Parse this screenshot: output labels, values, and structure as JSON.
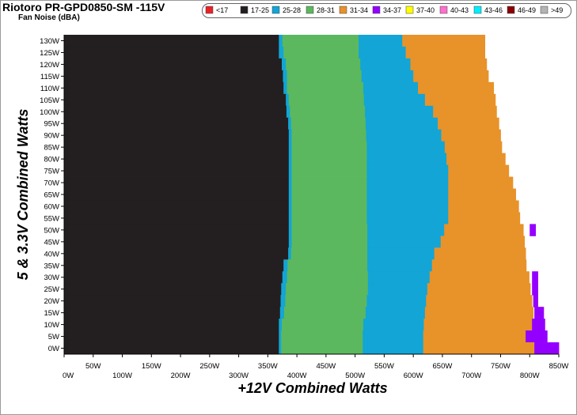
{
  "title": "Riotoro PR-GPD0850-SM -115V",
  "subtitle": "Fan Noise (dBA)",
  "chart_data": {
    "type": "heatmap",
    "xlabel": "+12V Combined Watts",
    "ylabel": "5 & 3.3V Combined Watts",
    "xlim": [
      0,
      850
    ],
    "ylim": [
      0,
      130
    ],
    "x_ticks": [
      "0W",
      "50W",
      "100W",
      "150W",
      "200W",
      "250W",
      "300W",
      "350W",
      "400W",
      "450W",
      "500W",
      "550W",
      "600W",
      "650W",
      "700W",
      "750W",
      "800W",
      "850W"
    ],
    "y_ticks": [
      "0W",
      "5W",
      "10W",
      "15W",
      "20W",
      "25W",
      "30W",
      "35W",
      "40W",
      "45W",
      "50W",
      "55W",
      "60W",
      "65W",
      "70W",
      "75W",
      "80W",
      "85W",
      "90W",
      "95W",
      "100W",
      "105W",
      "110W",
      "115W",
      "120W",
      "125W",
      "130W"
    ],
    "legend": [
      {
        "label": "<17",
        "color": "#e8222a"
      },
      {
        "label": "17-25",
        "color": "#231f20"
      },
      {
        "label": "25-28",
        "color": "#12a5d6"
      },
      {
        "label": "28-31",
        "color": "#5cb85e"
      },
      {
        "label": "31-34",
        "color": "#e8922a"
      },
      {
        "label": "34-37",
        "color": "#9400ff"
      },
      {
        "label": "37-40",
        "color": "#ffff00"
      },
      {
        "label": "40-43",
        "color": "#ff6fcf"
      },
      {
        "label": "43-46",
        "color": "#00eeff"
      },
      {
        "label": "46-49",
        "color": "#8b0000"
      },
      {
        "label": ">49",
        "color": "#b4b4b4"
      }
    ],
    "legend_position": "top",
    "rows": [
      {
        "y": 130,
        "boundaries": [
          369,
          375,
          506,
          581,
          723
        ]
      },
      {
        "y": 125,
        "boundaries": [
          369,
          377,
          506,
          587,
          723
        ]
      },
      {
        "y": 120,
        "boundaries": [
          374,
          381,
          509,
          595,
          726
        ]
      },
      {
        "y": 115,
        "boundaries": [
          376,
          383,
          511,
          600,
          729
        ]
      },
      {
        "y": 110,
        "boundaries": [
          377,
          383,
          514,
          608,
          738
        ]
      },
      {
        "y": 105,
        "boundaries": [
          381,
          386,
          515,
          620,
          741
        ]
      },
      {
        "y": 100,
        "boundaries": [
          382,
          388,
          517,
          634,
          743
        ]
      },
      {
        "y": 95,
        "boundaries": [
          385,
          390,
          518,
          642,
          747
        ]
      },
      {
        "y": 90,
        "boundaries": [
          386,
          391,
          519,
          648,
          750
        ]
      },
      {
        "y": 85,
        "boundaries": [
          386,
          391,
          520,
          654,
          752
        ]
      },
      {
        "y": 80,
        "boundaries": [
          386,
          391,
          520,
          657,
          758
        ]
      },
      {
        "y": 75,
        "boundaries": [
          386,
          391,
          520,
          660,
          764
        ]
      },
      {
        "y": 70,
        "boundaries": [
          386,
          391,
          520,
          660,
          771
        ]
      },
      {
        "y": 65,
        "boundaries": [
          386,
          391,
          520,
          660,
          776
        ]
      },
      {
        "y": 60,
        "boundaries": [
          386,
          391,
          520,
          660,
          781
        ]
      },
      {
        "y": 55,
        "boundaries": [
          386,
          391,
          520,
          660,
          783
        ]
      },
      {
        "y": 50,
        "boundaries": [
          386,
          391,
          521,
          653,
          789
        ],
        "hot_ranges": [
          [
            800,
            810
          ]
        ]
      },
      {
        "y": 45,
        "boundaries": [
          386,
          391,
          521,
          647,
          791
        ]
      },
      {
        "y": 40,
        "boundaries": [
          385,
          390,
          521,
          636,
          793
        ]
      },
      {
        "y": 35,
        "boundaries": [
          377,
          384,
          521,
          632,
          794
        ]
      },
      {
        "y": 30,
        "boundaries": [
          375,
          383,
          522,
          628,
          799
        ],
        "hot_ranges": [
          [
            804,
            814
          ]
        ]
      },
      {
        "y": 25,
        "boundaries": [
          373,
          381,
          522,
          624,
          801
        ],
        "hot_ranges": [
          [
            804,
            814
          ]
        ]
      },
      {
        "y": 20,
        "boundaries": [
          372,
          380,
          520,
          622,
          804
        ],
        "hot_ranges": [
          [
            806,
            814
          ]
        ]
      },
      {
        "y": 15,
        "boundaries": [
          371,
          378,
          518,
          620,
          806
        ],
        "hot_ranges": [
          [
            808,
            824
          ]
        ]
      },
      {
        "y": 10,
        "boundaries": [
          369,
          374,
          514,
          618,
          806
        ],
        "hot_ranges": [
          [
            804,
            826
          ]
        ]
      },
      {
        "y": 5,
        "boundaries": [
          369,
          373,
          513,
          617,
          793
        ],
        "hot_ranges": [
          [
            793,
            830
          ]
        ]
      },
      {
        "y": 0,
        "boundaries": [
          369,
          373,
          513,
          617,
          808
        ],
        "hot_ranges": [
          [
            808,
            850
          ]
        ]
      }
    ]
  }
}
